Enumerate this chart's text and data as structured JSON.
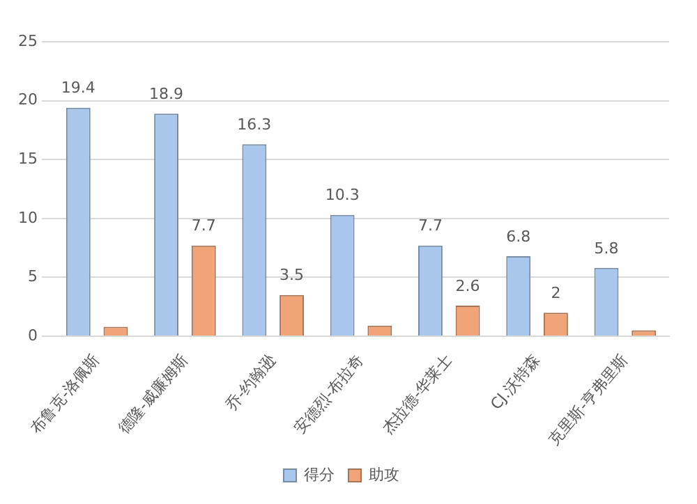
{
  "chart_data": {
    "type": "bar",
    "categories": [
      "布鲁克-洛佩斯",
      "德隆-威廉姆斯",
      "乔-约翰逊",
      "安德烈-布拉奇",
      "杰拉德-华莱士",
      "CJ.沃特森",
      "克里斯-亨弗里斯"
    ],
    "series": [
      {
        "name": "得分",
        "color": "#a9c6ec",
        "values": [
          19.4,
          18.9,
          16.3,
          10.3,
          7.7,
          6.8,
          5.8
        ],
        "value_labels": [
          "19.4",
          "18.9",
          "16.3",
          "10.3",
          "7.7",
          "6.8",
          "5.8"
        ]
      },
      {
        "name": "助攻",
        "color": "#f0a478",
        "values": [
          0.8,
          7.7,
          3.5,
          0.9,
          2.6,
          2,
          0.5
        ],
        "value_labels": [
          null,
          "7.7",
          "3.5",
          null,
          "2.6",
          "2",
          null
        ]
      }
    ],
    "ylim": [
      0,
      25
    ],
    "yticks": [
      0,
      5,
      10,
      15,
      20,
      25
    ],
    "grid": "y",
    "legend": "bottom"
  }
}
